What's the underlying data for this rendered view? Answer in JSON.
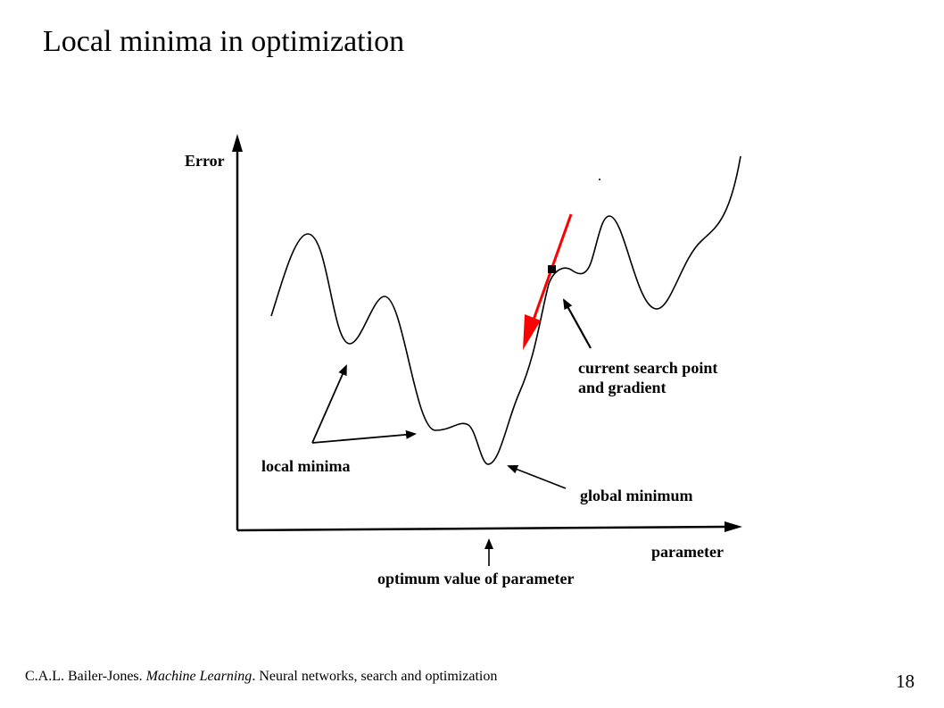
{
  "title": "Local minima in optimization",
  "diagram": {
    "y_axis_label": "Error",
    "x_axis_label": "parameter",
    "annotations": {
      "local_minima": "local minima",
      "global_minimum": "global minimum",
      "current_search_point_line1": "current search point",
      "current_search_point_line2": "and gradient",
      "optimum_value": "optimum value of parameter"
    },
    "colors": {
      "gradient_arrow": "#ff0000",
      "curve": "#000000"
    }
  },
  "footer": {
    "author": "C.A.L. Bailer-Jones. ",
    "book": "Machine Learning",
    "rest": ". Neural networks, search and optimization"
  },
  "page_number": "18"
}
